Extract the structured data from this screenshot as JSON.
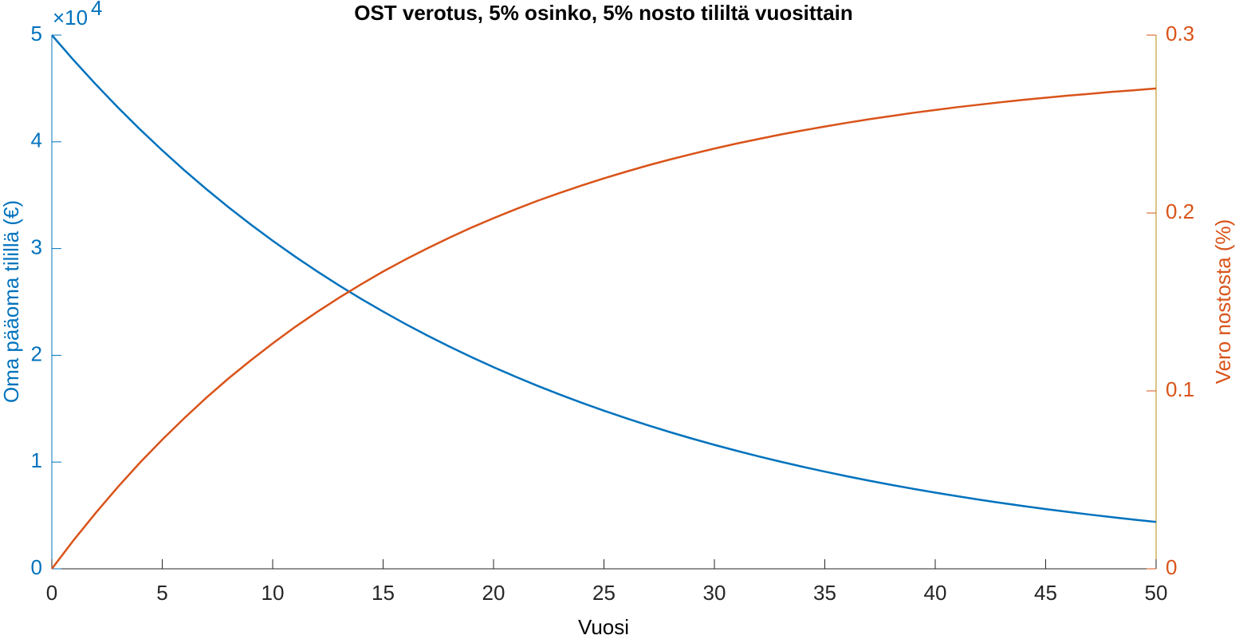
{
  "chart_data": {
    "type": "line",
    "title": "OST verotus, 5% osinko, 5% nosto tililtä vuosittain",
    "x_label": "Vuosi",
    "y_label": "Oma pääoma tilillä (€)",
    "y2_label": "Vero nostosta (%)",
    "y_multiplier": {
      "base": "×10",
      "exponent": "4"
    },
    "x": [
      0,
      1,
      2,
      3,
      4,
      5,
      6,
      7,
      8,
      9,
      10,
      11,
      12,
      13,
      14,
      15,
      16,
      17,
      18,
      19,
      20,
      21,
      22,
      23,
      24,
      25,
      26,
      27,
      28,
      29,
      30,
      31,
      32,
      33,
      34,
      35,
      36,
      37,
      38,
      39,
      40,
      41,
      42,
      43,
      44,
      45,
      46,
      47,
      48,
      49,
      50
    ],
    "series": [
      {
        "name": "Oma pääoma tilillä (€)",
        "color": "#0072BD",
        "axis": "y",
        "values": [
          50000,
          47625,
          45363,
          43208,
          41156,
          39201,
          37339,
          35565,
          33876,
          32267,
          30734,
          29274,
          27884,
          26559,
          25298,
          24096,
          22951,
          21861,
          20823,
          19834,
          18892,
          17994,
          17140,
          16326,
          15550,
          14811,
          14108,
          13438,
          12799,
          12191,
          11612,
          11061,
          10535,
          10035,
          9558,
          9104,
          8672,
          8260,
          7868,
          7494,
          7138,
          6799,
          6476,
          6169,
          5876,
          5597,
          5331,
          5078,
          4836,
          4607,
          4388
        ]
      },
      {
        "name": "Vero nostosta (%)",
        "color": "#D95319",
        "axis": "y2",
        "values": [
          0,
          0.0163,
          0.0316,
          0.0461,
          0.0598,
          0.0726,
          0.0847,
          0.0962,
          0.107,
          0.1171,
          0.1267,
          0.1358,
          0.1443,
          0.1523,
          0.1599,
          0.1671,
          0.1738,
          0.1801,
          0.1861,
          0.1918,
          0.1971,
          0.2021,
          0.2069,
          0.2113,
          0.2155,
          0.2195,
          0.2232,
          0.2268,
          0.2301,
          0.2332,
          0.2362,
          0.239,
          0.2416,
          0.2441,
          0.2464,
          0.2486,
          0.2507,
          0.2527,
          0.2545,
          0.2563,
          0.2579,
          0.2595,
          0.2609,
          0.2623,
          0.2636,
          0.2648,
          0.266,
          0.267,
          0.2681,
          0.269,
          0.27
        ]
      }
    ],
    "xlim": [
      0,
      50
    ],
    "xticks": [
      0,
      5,
      10,
      15,
      20,
      25,
      30,
      35,
      40,
      45,
      50
    ],
    "ylim": [
      0,
      50000
    ],
    "yticks": [
      {
        "value": 0,
        "label": "0"
      },
      {
        "value": 10000,
        "label": "1"
      },
      {
        "value": 20000,
        "label": "2"
      },
      {
        "value": 30000,
        "label": "3"
      },
      {
        "value": 40000,
        "label": "4"
      },
      {
        "value": 50000,
        "label": "5"
      }
    ],
    "y2lim": [
      0,
      0.3
    ],
    "y2ticks": [
      0,
      0.1,
      0.2,
      0.3
    ],
    "grid": false
  }
}
